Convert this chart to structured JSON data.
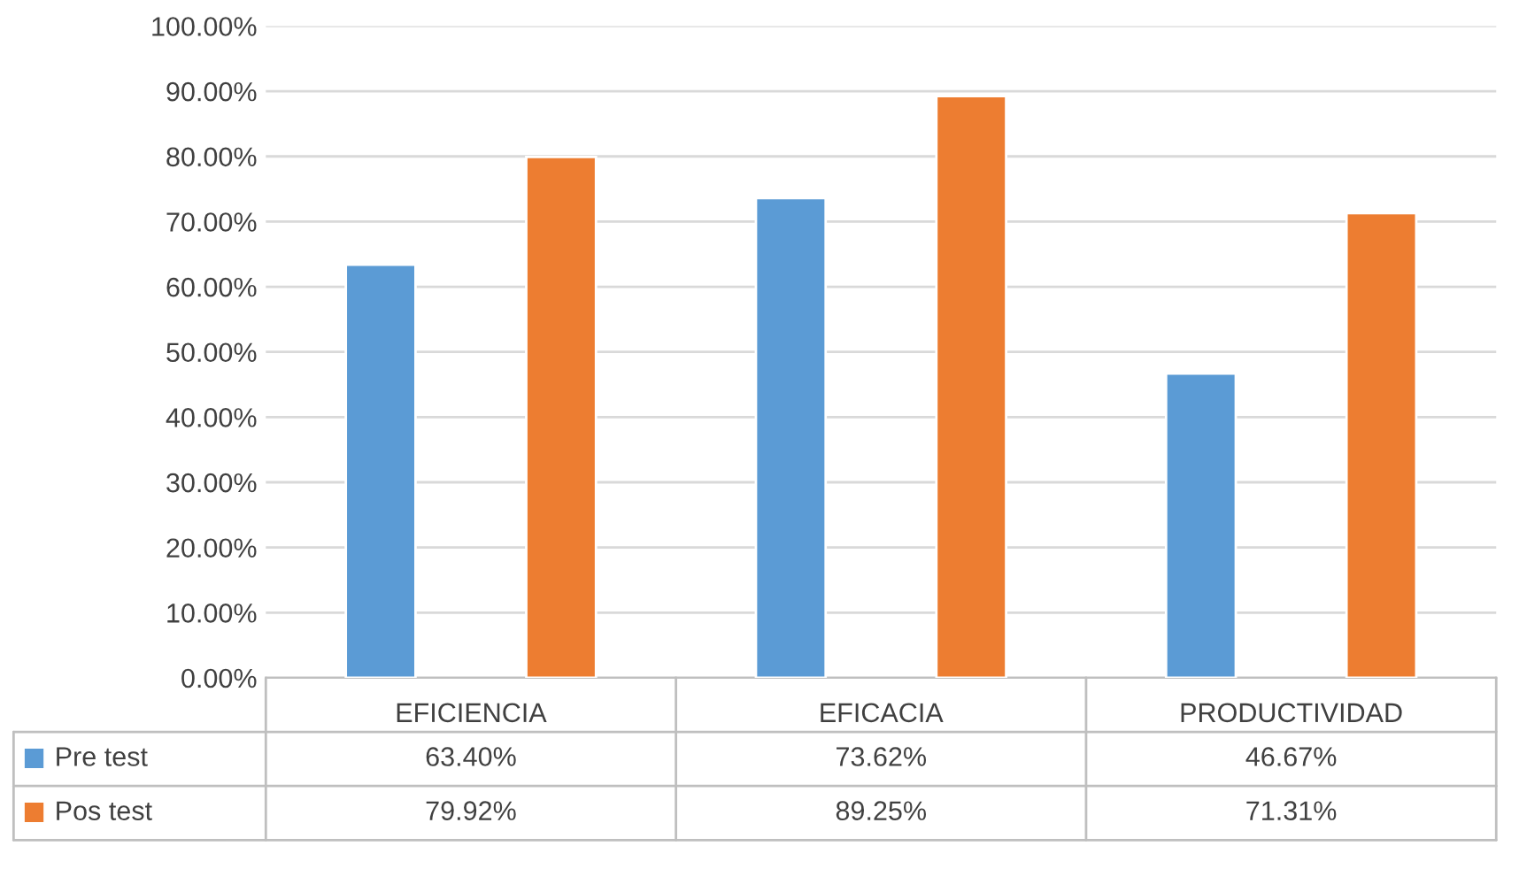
{
  "chart_data": {
    "type": "bar",
    "categories": [
      "EFICIENCIA",
      "EFICACIA",
      "PRODUCTIVIDAD"
    ],
    "series": [
      {
        "name": "Pre test",
        "color": "#5b9bd5",
        "values": [
          63.4,
          73.62,
          46.67
        ],
        "value_labels": [
          "63.40%",
          "73.62%",
          "46.67%"
        ]
      },
      {
        "name": "Pos test",
        "color": "#ed7d31",
        "values": [
          79.92,
          89.25,
          71.31
        ],
        "value_labels": [
          "79.92%",
          "89.25%",
          "71.31%"
        ]
      }
    ],
    "ylim": [
      0,
      100
    ],
    "yticks": [
      {
        "value": 0,
        "label": "0.00%"
      },
      {
        "value": 10,
        "label": "10.00%"
      },
      {
        "value": 20,
        "label": "20.00%"
      },
      {
        "value": 30,
        "label": "30.00%"
      },
      {
        "value": 40,
        "label": "40.00%"
      },
      {
        "value": 50,
        "label": "50.00%"
      },
      {
        "value": 60,
        "label": "60.00%"
      },
      {
        "value": 70,
        "label": "70.00%"
      },
      {
        "value": 80,
        "label": "80.00%"
      },
      {
        "value": 90,
        "label": "90.00%"
      },
      {
        "value": 100,
        "label": "100.00%"
      }
    ],
    "grid": "y",
    "legend": "bottom"
  }
}
